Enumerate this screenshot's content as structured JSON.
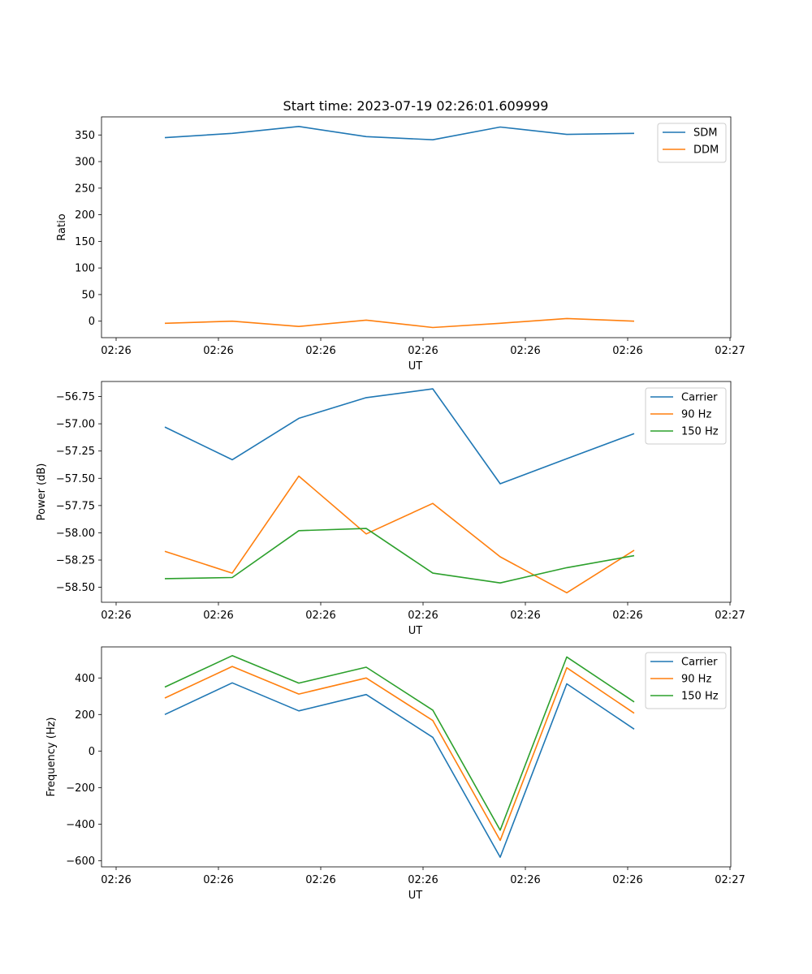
{
  "chart_data": [
    {
      "type": "line",
      "title": "Start time: 2023-07-19 02:26:01.609999",
      "xlabel": "UT",
      "ylabel": "Ratio",
      "xtick_labels": [
        "02:26",
        "02:26",
        "02:26",
        "02:26",
        "02:26",
        "02:26",
        "02:26",
        "02:27"
      ],
      "ylim": [
        -31,
        384
      ],
      "yticks": [
        0,
        50,
        100,
        150,
        200,
        250,
        300,
        350
      ],
      "ytick_labels": [
        "0",
        "50",
        "100",
        "150",
        "200",
        "250",
        "300",
        "350"
      ],
      "legend_position": "top-right",
      "series": [
        {
          "name": "SDM",
          "color": "#1f77b4",
          "values": [
            345,
            353,
            366,
            347,
            341,
            365,
            351,
            353
          ]
        },
        {
          "name": "DDM",
          "color": "#ff7f0e",
          "values": [
            -4,
            0,
            -10,
            2,
            -12,
            -4,
            5,
            0
          ]
        }
      ]
    },
    {
      "type": "line",
      "title": "",
      "xlabel": "UT",
      "ylabel": "Power (dB)",
      "xtick_labels": [
        "02:26",
        "02:26",
        "02:26",
        "02:26",
        "02:26",
        "02:26",
        "02:26",
        "02:27"
      ],
      "ylim": [
        -58.637,
        -56.612
      ],
      "yticks": [
        -58.5,
        -58.25,
        -58.0,
        -57.75,
        -57.5,
        -57.25,
        -57.0,
        -56.75
      ],
      "ytick_labels": [
        "−58.50",
        "−58.25",
        "−58.00",
        "−57.75",
        "−57.50",
        "−57.25",
        "−57.00",
        "−56.75"
      ],
      "legend_position": "top-right",
      "series": [
        {
          "name": "Carrier",
          "color": "#1f77b4",
          "values": [
            -57.03,
            -57.33,
            -56.95,
            -56.76,
            -56.68,
            -57.55,
            -57.32,
            -57.09
          ]
        },
        {
          "name": "90 Hz",
          "color": "#ff7f0e",
          "values": [
            -58.17,
            -58.37,
            -57.48,
            -58.01,
            -57.73,
            -58.22,
            -58.55,
            -58.16
          ]
        },
        {
          "name": "150 Hz",
          "color": "#2ca02c",
          "values": [
            -58.42,
            -58.41,
            -57.98,
            -57.96,
            -58.37,
            -58.46,
            -58.32,
            -58.21
          ]
        }
      ]
    },
    {
      "type": "line",
      "title": "",
      "xlabel": "UT",
      "ylabel": "Frequency (Hz)",
      "xtick_labels": [
        "02:26",
        "02:26",
        "02:26",
        "02:26",
        "02:26",
        "02:26",
        "02:26",
        "02:27"
      ],
      "ylim": [
        -634,
        570
      ],
      "yticks": [
        -600,
        -400,
        -200,
        0,
        200,
        400
      ],
      "ytick_labels": [
        "−600",
        "−400",
        "−200",
        "0",
        "200",
        "400"
      ],
      "legend_position": "top-right",
      "series": [
        {
          "name": "Carrier",
          "color": "#1f77b4",
          "values": [
            200,
            373,
            220,
            309,
            75,
            -581,
            368,
            120
          ]
        },
        {
          "name": "90 Hz",
          "color": "#ff7f0e",
          "values": [
            290,
            463,
            312,
            400,
            167,
            -489,
            456,
            207
          ]
        },
        {
          "name": "150 Hz",
          "color": "#2ca02c",
          "values": [
            350,
            522,
            372,
            459,
            224,
            -433,
            515,
            269
          ]
        }
      ]
    }
  ]
}
